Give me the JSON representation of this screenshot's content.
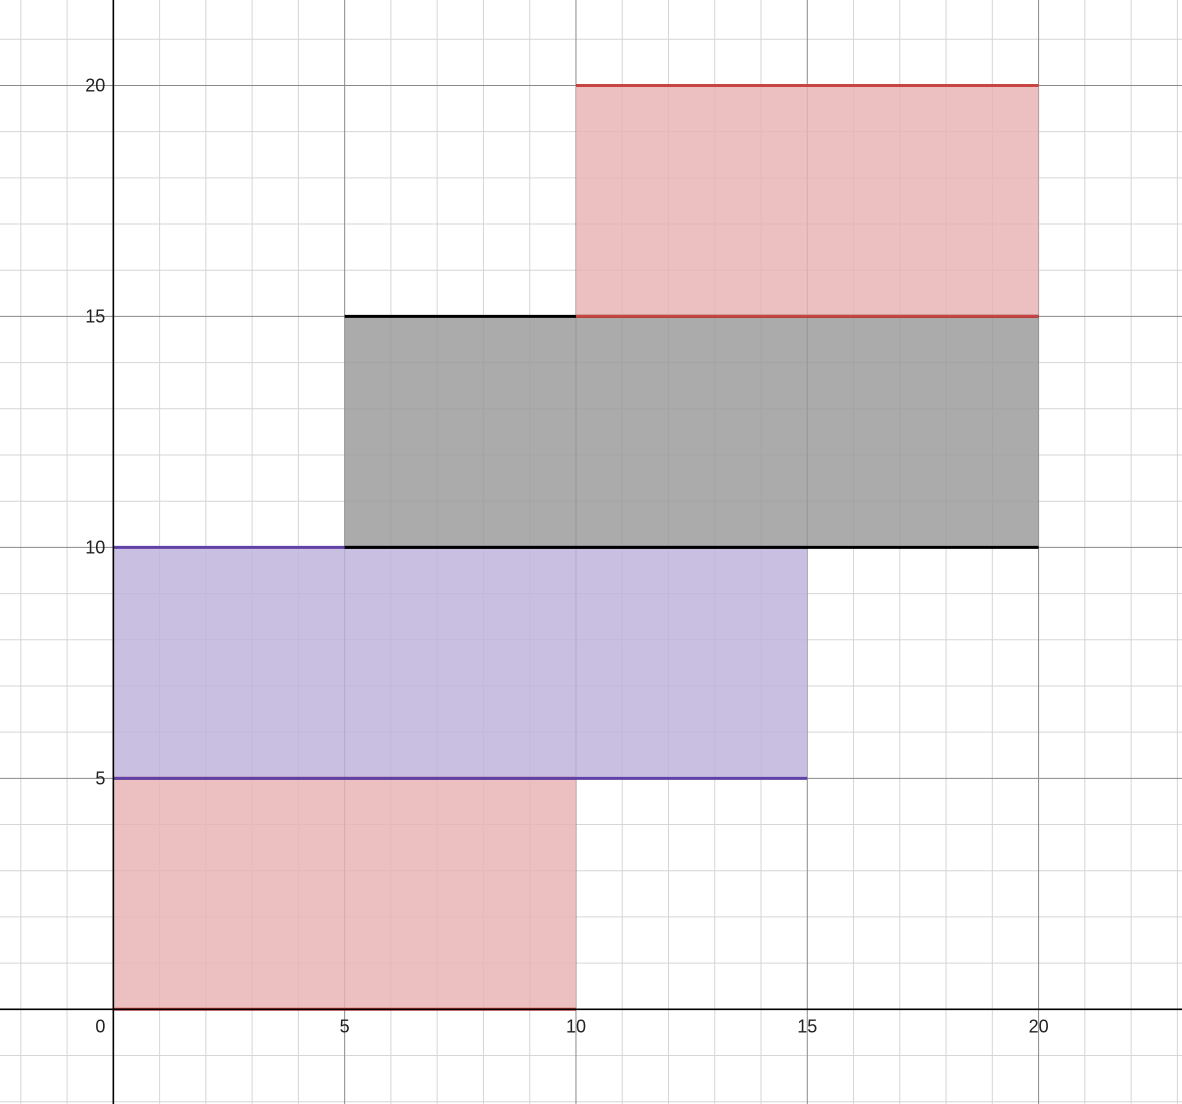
{
  "chart_data": {
    "type": "area",
    "xlim": [
      -2.45,
      23.1
    ],
    "ylim": [
      -2.05,
      21.85
    ],
    "grid": true,
    "minor_grid_step": 1,
    "major_grid_step": 5,
    "x_ticks": [
      5,
      10,
      15,
      20
    ],
    "y_ticks": [
      5,
      10,
      15,
      20
    ],
    "origin_label": "0",
    "regions": [
      {
        "x": [
          0,
          10
        ],
        "y": [
          0,
          5
        ],
        "fill": "#e8b2b2",
        "edge": "#c74440"
      },
      {
        "x": [
          0,
          15
        ],
        "y": [
          5,
          10
        ],
        "fill": "#bdb2db",
        "edge": "#6042a6"
      },
      {
        "x": [
          5,
          20
        ],
        "y": [
          10,
          15
        ],
        "fill": "#999999",
        "edge": "#000000"
      },
      {
        "x": [
          10,
          20
        ],
        "y": [
          15,
          20
        ],
        "fill": "#e8b2b2",
        "edge": "#c74440"
      }
    ]
  }
}
